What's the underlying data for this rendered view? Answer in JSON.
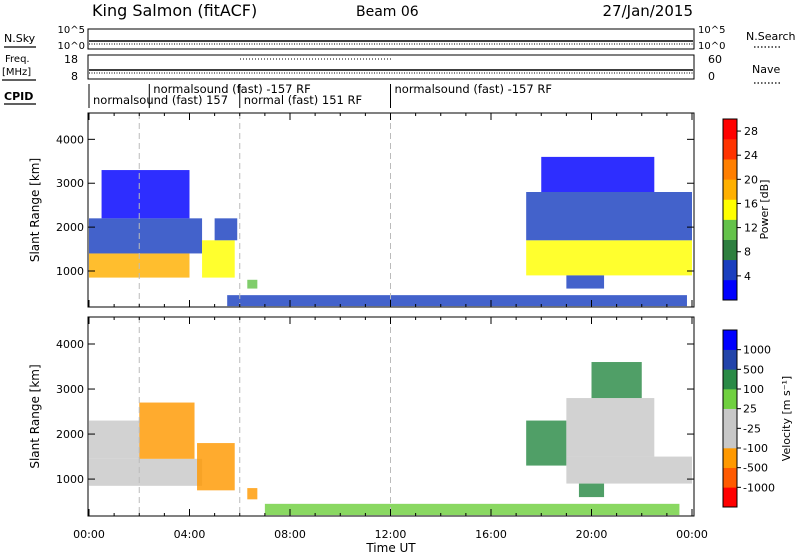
{
  "header": {
    "station": "King Salmon (fitACF)",
    "beam": "Beam 06",
    "date": "27/Jan/2015"
  },
  "status_panels": {
    "nsky_label": "N.Sky",
    "nsearch_label": "N.Search",
    "freq_label": "Freq.",
    "freq_unit": "[MHz]",
    "nave_label": "Nave",
    "cpid_label": "CPID",
    "nsky_ticks": [
      "10^5",
      "10^0"
    ],
    "nsearch_ticks": [
      "10^5",
      "10^0"
    ],
    "freq_ticks": [
      "18",
      "8"
    ],
    "nave_ticks": [
      "60",
      "0"
    ],
    "cpid_segments": [
      {
        "label": "normalsound (fast) 157",
        "start": 0.0,
        "end": 6.0,
        "row": 1
      },
      {
        "label": "normalsound (fast) -157 RF",
        "start": 2.4,
        "end": 5.4,
        "row": 0
      },
      {
        "label": "normal (fast) 151 RF",
        "start": 6.0,
        "end": 12.0,
        "row": 1
      },
      {
        "label": "normalsound (fast) -157 RF",
        "start": 12.0,
        "end": 24.0,
        "row": 0
      }
    ]
  },
  "colors": {
    "power": [
      "#0000ff",
      "#1a3fbf",
      "#2e7f3f",
      "#64c24a",
      "#ffff00",
      "#ffb000",
      "#ff7f00",
      "#ff3300",
      "#ff0000"
    ],
    "velocity": [
      "#ff0000",
      "#ff5a00",
      "#ff9900",
      "#c8c8c8",
      "#c8c8c8",
      "#70d040",
      "#2a8a46",
      "#2244aa",
      "#0000ff"
    ],
    "ground_scatter": "#c8c8c8"
  },
  "chart_data": [
    {
      "type": "heatmap",
      "title": "Power",
      "xlabel": "",
      "ylabel": "Slant Range [km]",
      "xlim": [
        0,
        24
      ],
      "ylim": [
        180,
        4600
      ],
      "xticks": [
        "00:00",
        "04:00",
        "08:00",
        "12:00",
        "16:00",
        "20:00",
        "00:00"
      ],
      "yticks": [
        1000,
        2000,
        3000,
        4000
      ],
      "dashed_vlines": [
        2,
        6,
        12
      ],
      "colorbar": {
        "label": "Power [dB]",
        "ticks": [
          4,
          8,
          12,
          16,
          20,
          24,
          28
        ],
        "range": [
          0,
          30
        ]
      },
      "regions": [
        {
          "t0": 0.0,
          "t1": 4.0,
          "r0": 850,
          "r1": 1400,
          "value": 18
        },
        {
          "t0": 0.0,
          "t1": 4.5,
          "r0": 1400,
          "r1": 2200,
          "value": 6
        },
        {
          "t0": 0.5,
          "t1": 4.0,
          "r0": 2200,
          "r1": 3300,
          "value": 3
        },
        {
          "t0": 4.5,
          "t1": 5.8,
          "r0": 850,
          "r1": 1700,
          "value": 15
        },
        {
          "t0": 5.0,
          "t1": 5.9,
          "r0": 1700,
          "r1": 2200,
          "value": 6
        },
        {
          "t0": 6.3,
          "t1": 6.7,
          "r0": 600,
          "r1": 800,
          "value": 10
        },
        {
          "t0": 5.5,
          "t1": 23.8,
          "r0": 200,
          "r1": 450,
          "value": 6
        },
        {
          "t0": 17.4,
          "t1": 24.0,
          "r0": 900,
          "r1": 1700,
          "value": 14
        },
        {
          "t0": 17.4,
          "t1": 24.0,
          "r0": 1700,
          "r1": 2800,
          "value": 5
        },
        {
          "t0": 18.0,
          "t1": 22.5,
          "r0": 2800,
          "r1": 3600,
          "value": 3
        },
        {
          "t0": 19.0,
          "t1": 20.5,
          "r0": 600,
          "r1": 900,
          "value": 6
        }
      ]
    },
    {
      "type": "heatmap",
      "title": "Velocity",
      "xlabel": "Time UT",
      "ylabel": "Slant Range [km]",
      "xlim": [
        0,
        24
      ],
      "ylim": [
        180,
        4600
      ],
      "xticks": [
        "00:00",
        "04:00",
        "08:00",
        "12:00",
        "16:00",
        "20:00",
        "00:00"
      ],
      "yticks": [
        1000,
        2000,
        3000,
        4000
      ],
      "dashed_vlines": [
        2,
        6,
        12
      ],
      "colorbar": {
        "label": "Velocity [m s⁻¹]",
        "ticks": [
          "1000",
          "500",
          "100",
          "25",
          "-25",
          "-100",
          "-500",
          "-1000"
        ]
      },
      "regions": [
        {
          "t0": 0.0,
          "t1": 4.5,
          "r0": 850,
          "r1": 1450,
          "value": 0
        },
        {
          "t0": 0.0,
          "t1": 2.0,
          "r0": 1450,
          "r1": 2300,
          "value": 0
        },
        {
          "t0": 2.0,
          "t1": 4.2,
          "r0": 1450,
          "r1": 2700,
          "value": -150
        },
        {
          "t0": 4.3,
          "t1": 5.8,
          "r0": 750,
          "r1": 1800,
          "value": -300
        },
        {
          "t0": 6.3,
          "t1": 6.7,
          "r0": 550,
          "r1": 800,
          "value": -200
        },
        {
          "t0": 7.0,
          "t1": 23.5,
          "r0": 200,
          "r1": 450,
          "value": 50
        },
        {
          "t0": 17.4,
          "t1": 19.0,
          "r0": 1300,
          "r1": 2300,
          "value": 150
        },
        {
          "t0": 19.0,
          "t1": 24.0,
          "r0": 900,
          "r1": 1500,
          "value": 0
        },
        {
          "t0": 19.0,
          "t1": 22.5,
          "r0": 1500,
          "r1": 2800,
          "value": 0
        },
        {
          "t0": 20.0,
          "t1": 22.0,
          "r0": 2800,
          "r1": 3600,
          "value": 300
        },
        {
          "t0": 19.5,
          "t1": 20.5,
          "r0": 600,
          "r1": 900,
          "value": 150
        }
      ]
    }
  ]
}
